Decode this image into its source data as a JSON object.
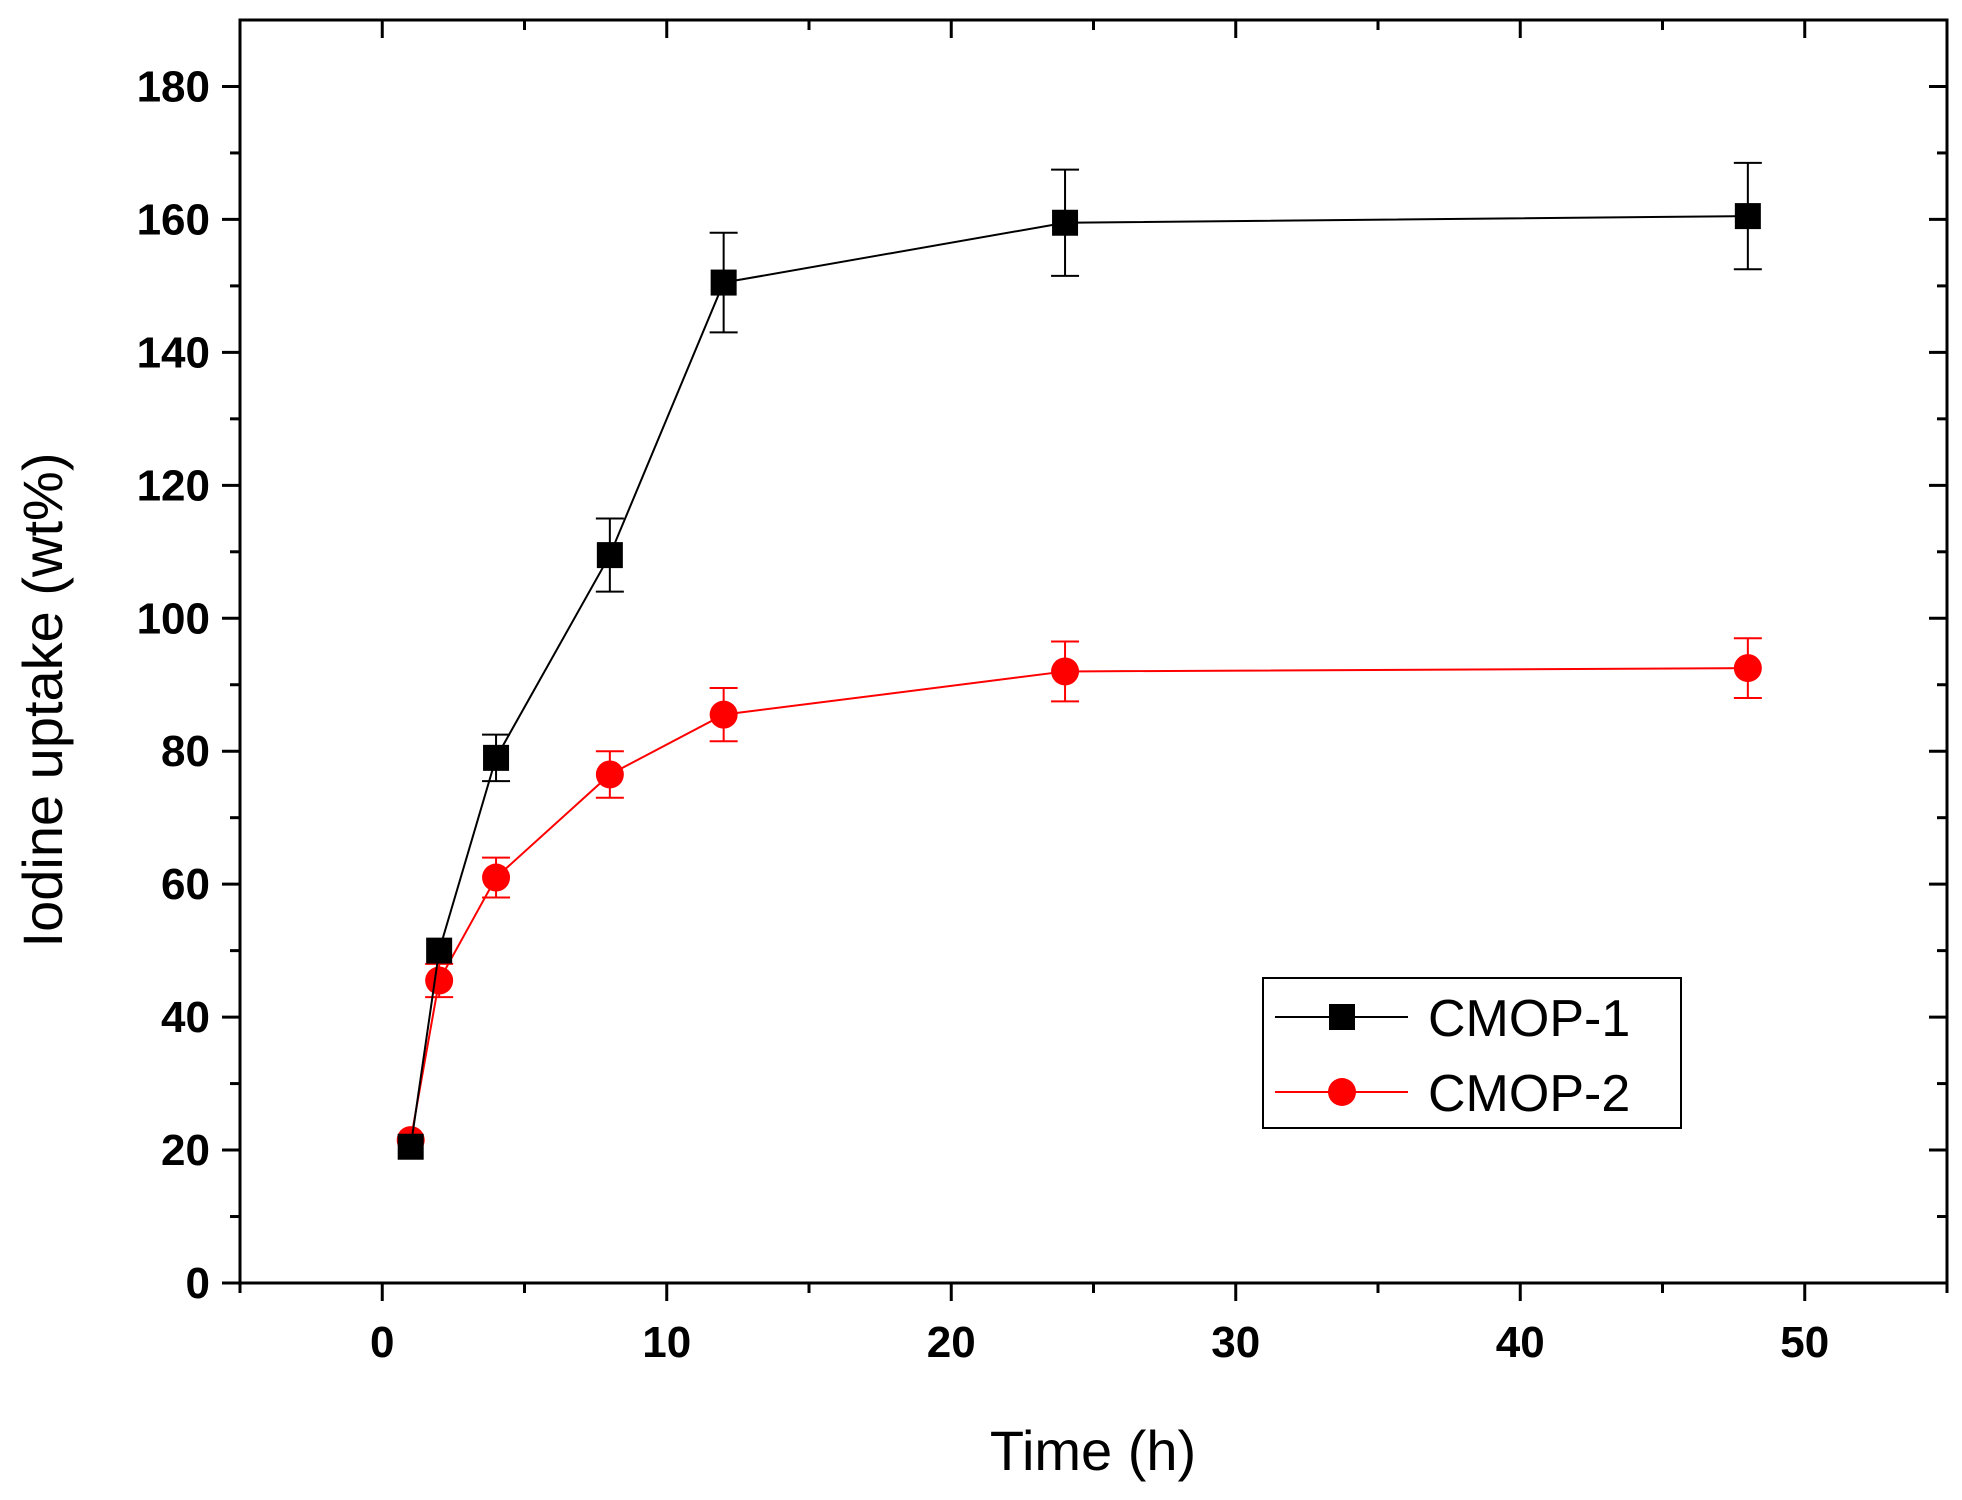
{
  "chart_data": {
    "type": "line",
    "title": "",
    "xlabel": "Time (h)",
    "ylabel": "Iodine uptake (wt%)",
    "xlim": [
      -5,
      55
    ],
    "ylim": [
      0,
      190
    ],
    "xticks": [
      0,
      10,
      20,
      30,
      40,
      50
    ],
    "xticks_minor": [
      -5,
      5,
      15,
      25,
      35,
      45,
      55
    ],
    "yticks": [
      0,
      20,
      40,
      60,
      80,
      100,
      120,
      140,
      160,
      180
    ],
    "yticks_minor": [
      10,
      30,
      50,
      70,
      90,
      110,
      130,
      150,
      170
    ],
    "grid": false,
    "legend_position": "lower-right",
    "x": [
      1,
      2,
      4,
      8,
      12,
      24,
      48
    ],
    "series": [
      {
        "name": "CMOP-1",
        "color": "#000000",
        "marker": "square",
        "values": [
          20.5,
          50,
          79,
          109.5,
          150.5,
          159.5,
          160.5
        ],
        "errors": [
          0,
          0,
          3.5,
          5.5,
          7.5,
          8,
          8
        ]
      },
      {
        "name": "CMOP-2",
        "color": "#ff0000",
        "marker": "circle",
        "values": [
          21.5,
          45.5,
          61,
          76.5,
          85.5,
          92,
          92.5
        ],
        "errors": [
          0,
          2.5,
          3,
          3.5,
          4,
          4.5,
          4.5
        ]
      }
    ]
  }
}
